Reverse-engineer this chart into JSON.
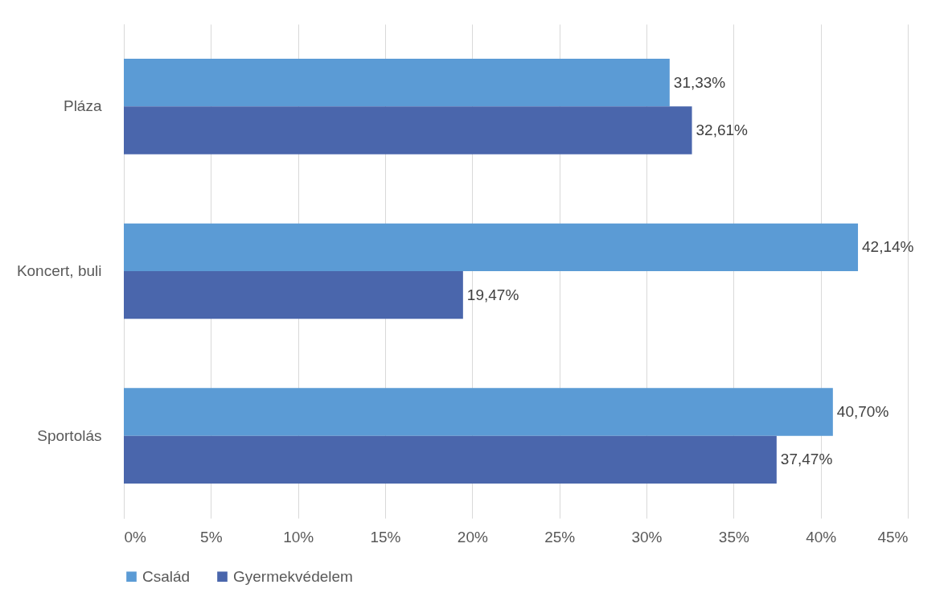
{
  "chart_data": {
    "type": "bar",
    "orientation": "horizontal",
    "categories": [
      "Pláza",
      "Koncert, buli",
      "Sportolás"
    ],
    "series": [
      {
        "name": "Család",
        "color": "#5b9bd5",
        "values": [
          31.33,
          42.14,
          40.7
        ],
        "value_labels": [
          "31,33%",
          "42,14%",
          "40,70%"
        ]
      },
      {
        "name": "Gyermekvédelem",
        "color": "#4a66ac",
        "values": [
          32.61,
          19.47,
          37.47
        ],
        "value_labels": [
          "32,61%",
          "19,47%",
          "37,47%"
        ]
      }
    ],
    "xlim": [
      0,
      45
    ],
    "xticks": [
      {
        "value": 0,
        "label": "0%"
      },
      {
        "value": 5,
        "label": "5%"
      },
      {
        "value": 10,
        "label": "10%"
      },
      {
        "value": 15,
        "label": "15%"
      },
      {
        "value": 20,
        "label": "20%"
      },
      {
        "value": 25,
        "label": "25%"
      },
      {
        "value": 30,
        "label": "30%"
      },
      {
        "value": 35,
        "label": "35%"
      },
      {
        "value": 40,
        "label": "40%"
      },
      {
        "value": 45,
        "label": "45%"
      }
    ],
    "grid": "x",
    "legend": "bottom"
  }
}
